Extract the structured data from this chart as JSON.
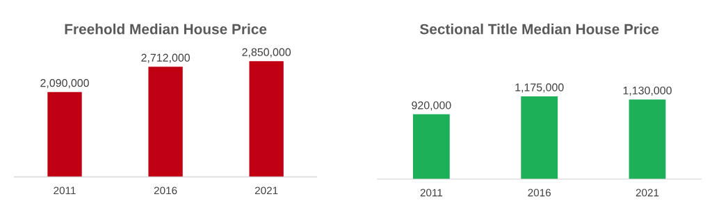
{
  "chart_data": [
    {
      "type": "bar",
      "title": "Freehold Median House Price",
      "categories": [
        "2011",
        "2016",
        "2021"
      ],
      "values": [
        2090000,
        2712000,
        2850000
      ],
      "value_labels": [
        "2,090,000",
        "2,712,000",
        "2,850,000"
      ],
      "color": "#c00012",
      "tick_labels": "x"
    },
    {
      "type": "bar",
      "title": "Sectional Title Median House Price",
      "categories": [
        "2011",
        "2016",
        "2021"
      ],
      "values": [
        920000,
        1175000,
        1130000
      ],
      "value_labels": [
        "920,000",
        "1,175,000",
        "1,130,000"
      ],
      "color": "#1db058",
      "tick_labels": "x"
    }
  ]
}
